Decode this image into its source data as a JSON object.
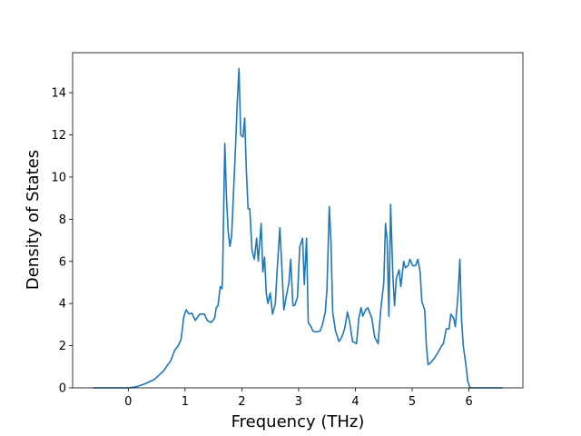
{
  "chart_data": {
    "type": "line",
    "xlabel": "Frequency (THz)",
    "ylabel": "Density of States",
    "x": [
      -0.62,
      0,
      0.14,
      0.3,
      0.46,
      0.62,
      0.75,
      0.82,
      0.88,
      0.93,
      0.98,
      1.02,
      1.07,
      1.12,
      1.18,
      1.26,
      1.34,
      1.39,
      1.46,
      1.52,
      1.55,
      1.58,
      1.62,
      1.65,
      1.66,
      1.7,
      1.73,
      1.76,
      1.79,
      1.82,
      1.89,
      1.92,
      1.95,
      1.98,
      2.02,
      2.05,
      2.08,
      2.11,
      2.14,
      2.18,
      2.22,
      2.26,
      2.29,
      2.34,
      2.37,
      2.4,
      2.43,
      2.46,
      2.5,
      2.54,
      2.59,
      2.62,
      2.67,
      2.7,
      2.74,
      2.78,
      2.83,
      2.86,
      2.9,
      2.93,
      2.98,
      3.02,
      3.07,
      3.1,
      3.14,
      3.17,
      3.22,
      3.25,
      3.31,
      3.38,
      3.42,
      3.47,
      3.5,
      3.54,
      3.57,
      3.6,
      3.65,
      3.71,
      3.76,
      3.81,
      3.86,
      3.9,
      3.95,
      4.02,
      4.06,
      4.1,
      4.13,
      4.18,
      4.22,
      4.29,
      4.34,
      4.4,
      4.45,
      4.5,
      4.53,
      4.56,
      4.59,
      4.62,
      4.66,
      4.69,
      4.72,
      4.77,
      4.8,
      4.85,
      4.88,
      4.93,
      4.96,
      5.01,
      5.06,
      5.1,
      5.14,
      5.17,
      5.22,
      5.25,
      5.28,
      5.33,
      5.39,
      5.46,
      5.52,
      5.55,
      5.6,
      5.65,
      5.68,
      5.73,
      5.76,
      5.81,
      5.84,
      5.87,
      5.9,
      5.95,
      5.98,
      6.02,
      6.59
    ],
    "values": [
      0,
      0,
      0.05,
      0.2,
      0.4,
      0.8,
      1.3,
      1.8,
      2.0,
      2.3,
      3.4,
      3.7,
      3.5,
      3.55,
      3.2,
      3.5,
      3.5,
      3.2,
      3.1,
      3.3,
      3.8,
      3.9,
      4.8,
      4.7,
      5.1,
      11.6,
      9.0,
      7.4,
      6.7,
      7.2,
      11.5,
      13.6,
      15.15,
      12.0,
      11.9,
      12.8,
      10.3,
      8.5,
      8.5,
      6.5,
      6.1,
      7.1,
      6.0,
      7.8,
      5.5,
      6.2,
      4.5,
      4.0,
      4.5,
      3.5,
      4.0,
      5.5,
      7.6,
      6.0,
      3.7,
      4.3,
      5.0,
      6.1,
      3.9,
      3.9,
      4.3,
      6.7,
      7.1,
      4.9,
      7.1,
      3.1,
      2.9,
      2.7,
      2.65,
      2.7,
      3.0,
      3.6,
      4.7,
      8.6,
      6.9,
      3.6,
      2.7,
      2.2,
      2.4,
      2.8,
      3.6,
      3.1,
      2.2,
      2.1,
      3.3,
      3.8,
      3.4,
      3.7,
      3.8,
      3.3,
      2.4,
      2.1,
      3.8,
      5.0,
      7.8,
      7.0,
      3.4,
      8.7,
      5.3,
      3.9,
      5.2,
      5.6,
      4.8,
      6.0,
      5.7,
      5.8,
      6.1,
      5.8,
      5.8,
      6.1,
      5.5,
      4.1,
      3.7,
      2.0,
      1.1,
      1.2,
      1.4,
      1.7,
      2.0,
      2.1,
      2.8,
      2.8,
      3.5,
      3.3,
      2.9,
      4.5,
      6.1,
      3.2,
      2.0,
      1.0,
      0.3,
      0,
      0
    ],
    "color": "#1f77b4",
    "xlim": [
      -0.98,
      6.95
    ],
    "xticks": [
      0,
      1,
      2,
      3,
      4,
      5,
      6
    ],
    "ylim": [
      0,
      15.9
    ],
    "yticks": [
      0,
      2,
      4,
      6,
      8,
      10,
      12,
      14
    ],
    "grid": false
  }
}
